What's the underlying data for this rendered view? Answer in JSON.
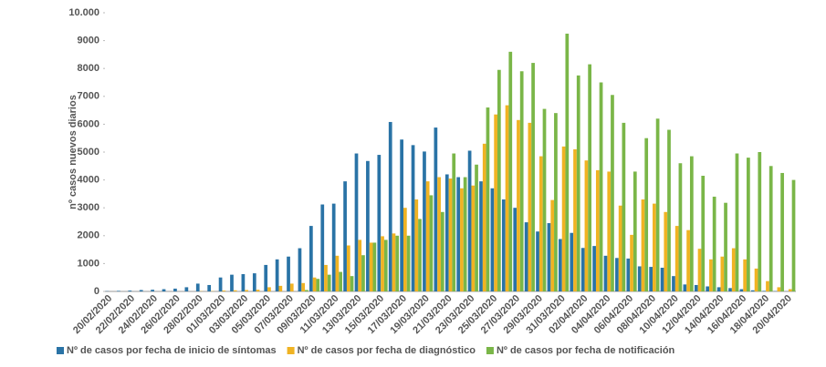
{
  "chart_data": {
    "type": "bar",
    "y_label": "nº casos nuevos diarios",
    "categories": [
      "20/02/2020",
      null,
      "22/02/2020",
      null,
      "24/02/2020",
      null,
      "26/02/2020",
      null,
      "28/02/2020",
      null,
      "01/03/2020",
      null,
      "03/03/2020",
      null,
      "05/03/2020",
      null,
      "07/03/2020",
      null,
      "09/03/2020",
      null,
      "11/03/2020",
      null,
      "13/03/2020",
      null,
      "15/03/2020",
      null,
      "17/03/2020",
      null,
      "19/03/2020",
      null,
      "21/03/2020",
      null,
      "23/03/2020",
      null,
      "25/03/2020",
      null,
      "27/03/2020",
      null,
      "29/03/2020",
      null,
      "31/03/2020",
      null,
      "02/04/2020",
      null,
      "04/04/2020",
      null,
      "06/04/2020",
      null,
      "08/04/2020",
      null,
      "10/04/2020",
      null,
      "12/04/2020",
      null,
      "14/04/2020",
      null,
      "16/04/2020",
      null,
      "18/04/2020",
      null,
      "20/04/2020"
    ],
    "series": [
      {
        "name": "Nº de casos por fecha de inicio de síntomas",
        "color": "#2a73a6",
        "values": [
          10,
          20,
          30,
          50,
          60,
          80,
          100,
          150,
          280,
          230,
          500,
          600,
          620,
          650,
          950,
          1150,
          1250,
          1550,
          2350,
          3120,
          3150,
          3950,
          4950,
          4680,
          4900,
          6080,
          5450,
          5250,
          5020,
          5880,
          4200,
          4100,
          5050,
          3950,
          3700,
          3300,
          3000,
          2480,
          2150,
          2450,
          1880,
          2100,
          1560,
          1630,
          1280,
          1200,
          1180,
          900,
          880,
          850,
          550,
          250,
          230,
          180,
          150,
          120,
          80,
          40,
          20,
          10,
          5
        ]
      },
      {
        "name": "Nº de casos por fecha de diagnóstico",
        "color": "#f0b323",
        "values": [
          0,
          0,
          0,
          0,
          0,
          0,
          0,
          0,
          10,
          10,
          30,
          40,
          50,
          60,
          150,
          200,
          280,
          300,
          500,
          950,
          1280,
          1650,
          1850,
          1750,
          1980,
          2080,
          3000,
          3300,
          3950,
          4100,
          4050,
          3700,
          3800,
          5300,
          6350,
          6680,
          6150,
          6050,
          4850,
          3280,
          5200,
          5100,
          4700,
          4350,
          4300,
          3080,
          2030,
          3300,
          3150,
          2850,
          2350,
          2200,
          1530,
          1150,
          1250,
          1550,
          1150,
          820,
          370,
          150,
          80
        ]
      },
      {
        "name": "Nº de casos por fecha de notificación",
        "color": "#7ab648",
        "values": [
          0,
          0,
          0,
          0,
          0,
          0,
          0,
          0,
          0,
          0,
          0,
          0,
          0,
          0,
          0,
          0,
          0,
          50,
          450,
          600,
          700,
          550,
          1300,
          1750,
          1850,
          2000,
          2000,
          2600,
          3450,
          2850,
          4950,
          4100,
          4550,
          6600,
          7950,
          8600,
          7900,
          8200,
          6550,
          6400,
          9250,
          7750,
          8150,
          7500,
          7050,
          6050,
          4300,
          5500,
          6200,
          5800,
          4600,
          4850,
          4150,
          3400,
          3180,
          4950,
          4800,
          5000,
          4500,
          4250,
          4000
        ]
      }
    ],
    "ylim": [
      0,
      10000
    ],
    "yticks": [
      0,
      1000,
      2000,
      3000,
      4000,
      5000,
      6000,
      7000,
      8000,
      9000,
      {
        "value": 10000,
        "label": "10.000"
      }
    ],
    "legend": "bottom"
  }
}
